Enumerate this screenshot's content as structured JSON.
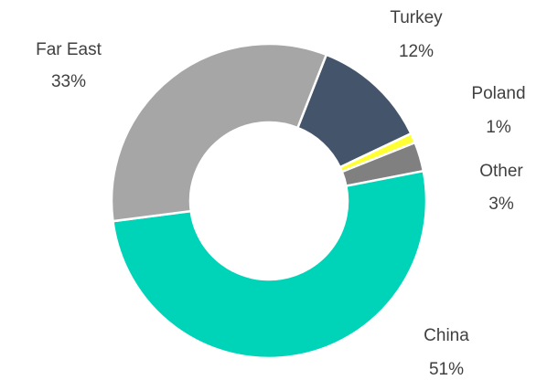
{
  "chart_data": {
    "type": "donut",
    "categories": [
      "Turkey",
      "Poland",
      "Other",
      "China",
      "Far East"
    ],
    "values": [
      12,
      1,
      3,
      51,
      33
    ],
    "value_labels": [
      "12%",
      "1%",
      "3%",
      "51%",
      "33%"
    ],
    "colors": [
      "#44546a",
      "#ffff33",
      "#808080",
      "#00d4b8",
      "#a6a6a6"
    ]
  }
}
